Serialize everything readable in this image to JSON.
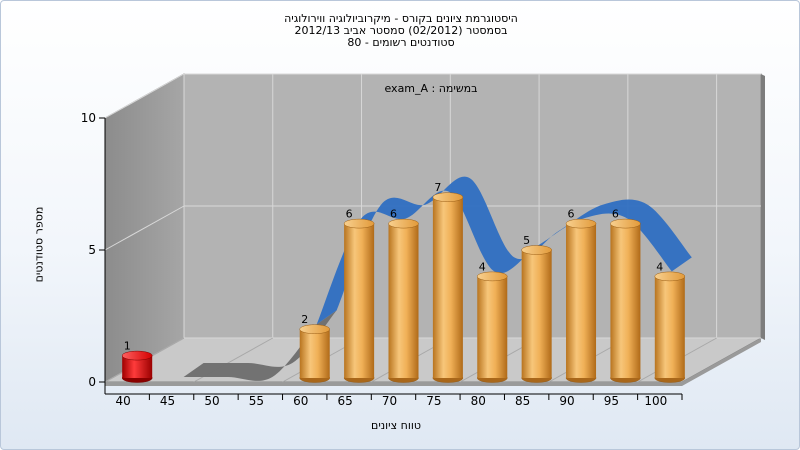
{
  "title_lines": [
    "היסטוגרמת ציונים בקורס - מיקרוביולוגיה ווירולוגיה",
    "בסמסטר  (02/2012)  סמסטר אביב 2012/13",
    "סטודנטים רשומים - 80"
  ],
  "colors": {
    "bar_orange": "#e8a343",
    "bar_red": "#e01010",
    "band_blue": "#2f6fc2",
    "band_gray": "#6e6e6e",
    "wall_gray": "#b3b3b3"
  },
  "chart_data": {
    "type": "bar",
    "title": "היסטוגרמת ציונים בקורס - מיקרוביולוגיה ווירולוגיה",
    "annotation": "exam_A : במשימה",
    "xlabel": "טווח ציונים",
    "ylabel": "מספר סטודנטים",
    "categories": [
      "40",
      "45",
      "50",
      "55",
      "60",
      "65",
      "70",
      "75",
      "80",
      "85",
      "90",
      "95",
      "100"
    ],
    "values": [
      1,
      0,
      0,
      0,
      2,
      6,
      6,
      7,
      4,
      5,
      6,
      6,
      4
    ],
    "highlight_category": "40",
    "yticks": [
      0,
      5,
      10
    ],
    "ylim": [
      0,
      10
    ],
    "grid": true
  }
}
